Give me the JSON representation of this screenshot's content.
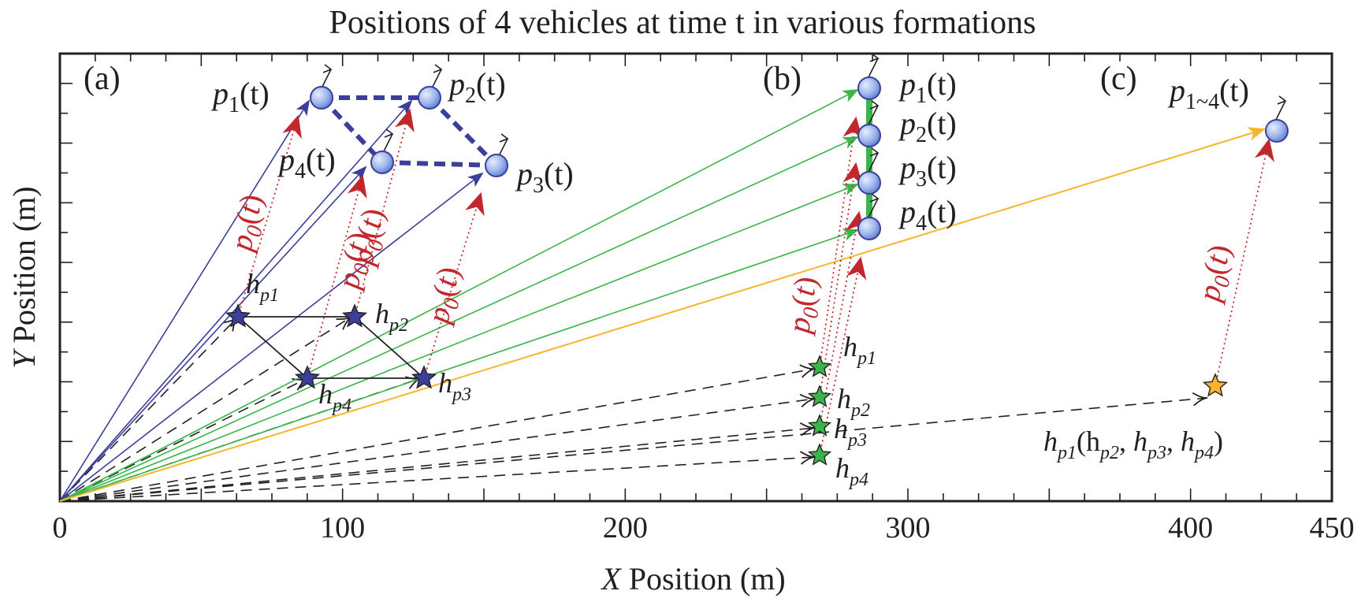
{
  "title": "Positions of 4 vehicles at time t in various formations",
  "x_axis": {
    "label_var": "X",
    "label_text": " Position (m)",
    "ticks": [
      "0",
      "100",
      "200",
      "300",
      "400",
      "450"
    ],
    "tick_values": [
      0,
      100,
      200,
      300,
      400,
      450
    ]
  },
  "y_axis": {
    "label_var": "Y",
    "label_text": " Position (m)"
  },
  "panels": [
    {
      "id": "a",
      "label": "(a)",
      "color": "#3b3f99",
      "vehicles": [
        {
          "base": "p",
          "sub": "1",
          "arg": "(t)"
        },
        {
          "base": "p",
          "sub": "2",
          "arg": "(t)"
        },
        {
          "base": "p",
          "sub": "3",
          "arg": "(t)"
        },
        {
          "base": "p",
          "sub": "4",
          "arg": "(t)"
        }
      ],
      "formation_points": [
        {
          "base": "h",
          "sub": "p1"
        },
        {
          "base": "h",
          "sub": "p2"
        },
        {
          "base": "h",
          "sub": "p3"
        },
        {
          "base": "h",
          "sub": "p4"
        }
      ],
      "offset_label": "p0(t)"
    },
    {
      "id": "b",
      "label": "(b)",
      "color": "#39b54a",
      "vehicles": [
        {
          "base": "p",
          "sub": "1",
          "arg": "(t)"
        },
        {
          "base": "p",
          "sub": "2",
          "arg": "(t)"
        },
        {
          "base": "p",
          "sub": "3",
          "arg": "(t)"
        },
        {
          "base": "p",
          "sub": "4",
          "arg": "(t)"
        }
      ],
      "formation_points": [
        {
          "base": "h",
          "sub": "p1"
        },
        {
          "base": "h",
          "sub": "p2"
        },
        {
          "base": "h",
          "sub": "p3"
        },
        {
          "base": "h",
          "sub": "p4"
        }
      ],
      "offset_label": "p0(t)"
    },
    {
      "id": "c",
      "label": "(c)",
      "color": "#f7b52c",
      "vehicles": [
        {
          "base": "p",
          "sub": "1~4",
          "arg": "(t)"
        }
      ],
      "formation_points": [
        {
          "base": "h",
          "sub": "p1",
          "rest": "(h",
          "items": [
            "p2",
            "p3",
            "p4"
          ]
        }
      ],
      "formation_text": "hp1(hp2, hp3, hp4)",
      "offset_label": "p0(t)"
    }
  ],
  "colors": {
    "axis": "#231f20",
    "offset_arrow": "#c1272d",
    "formation_dash": "#3b3f99",
    "panel_a_arrow": "#3b3f99",
    "panel_b_arrow": "#39b54a",
    "panel_c_arrow": "#f7b52c",
    "vehicle_fill_light": "#c9d7f5",
    "vehicle_fill_dark": "#6f8fd8"
  }
}
